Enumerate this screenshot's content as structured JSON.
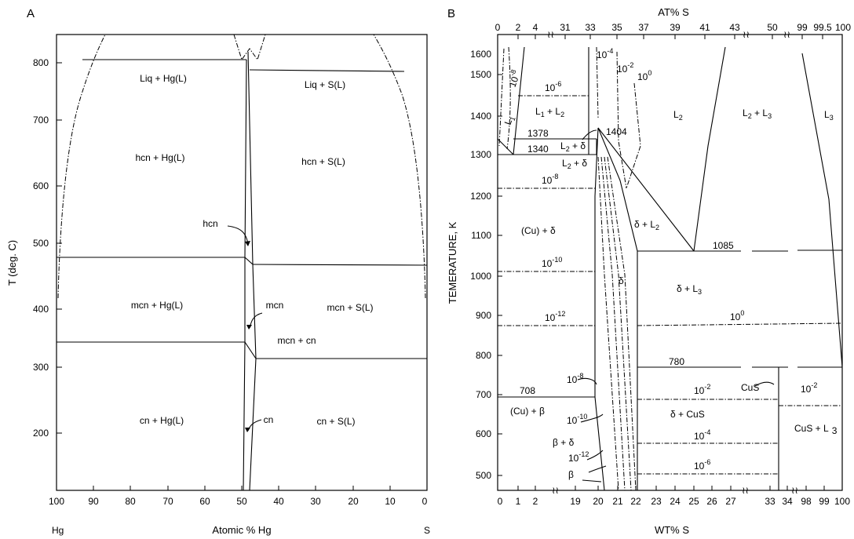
{
  "panel_a": {
    "letter": "A",
    "ylabel": "T (deg. C)",
    "xlabel": "Atomic % Hg",
    "x_end_left": "Hg",
    "x_end_right": "S",
    "x_ticks": [
      "100",
      "90",
      "80",
      "70",
      "60",
      "50",
      "40",
      "30",
      "20",
      "10",
      "0"
    ],
    "y_ticks": [
      "200",
      "300",
      "400",
      "500",
      "600",
      "700",
      "800"
    ],
    "regions": {
      "liq_hg": "Liq + Hg(L)",
      "liq_s": "Liq + S(L)",
      "hcn_hg": "hcn + Hg(L)",
      "hcn_s": "hcn + S(L)",
      "hcn": "hcn",
      "mcn_hg": "mcn + Hg(L)",
      "mcn": "mcn",
      "mcn_s": "mcn + S(L)",
      "mcn_cn": "mcn + cn",
      "cn_hg": "cn + Hg(L)",
      "cn": "cn",
      "cn_s": "cn + S(L)"
    }
  },
  "panel_b": {
    "letter": "B",
    "top_label": "AT% S",
    "ylabel": "TEMERATURE, K",
    "xlabel": "WT% S",
    "x_ticks_top": [
      "0",
      "2",
      "4",
      "31",
      "33",
      "35",
      "37",
      "39",
      "41",
      "43",
      "50",
      "99",
      "99.5",
      "100"
    ],
    "x_ticks_bottom": [
      "0",
      "1",
      "2",
      "19",
      "20",
      "21",
      "22",
      "23",
      "24",
      "25",
      "26",
      "27",
      "33",
      "34",
      "98",
      "99",
      "100"
    ],
    "y_ticks": [
      "500",
      "600",
      "700",
      "800",
      "900",
      "1000",
      "1100",
      "1200",
      "1300",
      "1400",
      "1500",
      "1600"
    ],
    "temps": {
      "t1378": "1378",
      "t1340": "1340",
      "t1404": "1404",
      "t1085": "1085",
      "t780": "780",
      "t708": "708"
    },
    "pressure_base": "10",
    "exponents": {
      "m4": "-4",
      "m2": "-2",
      "zero": "0",
      "m6": "-6",
      "m8": "-8",
      "m10": "-10",
      "m12": "-12"
    },
    "regions": {
      "l1": "L",
      "l1_sub": "1",
      "l1l2": "L",
      "l1l2_sub1": "1",
      "l1l2_plus": "+ L",
      "l1l2_sub2": "2",
      "l2": "L",
      "l2_sub": "2",
      "l2l3": "L",
      "l2l3_sub1": "2",
      "l2l3_plus": "+ L",
      "l2l3_sub2": "3",
      "l3": "L",
      "l3_sub": "3",
      "l2d_a": "+ δ",
      "l2d_b": "+ δ",
      "l_2": "L",
      "sub2": "2",
      "cu_d": "(Cu) +   δ",
      "d_l2": "δ + L",
      "d_l2_sub": "2",
      "d_l3": "δ + L",
      "d_l3_sub": "3",
      "delta": "δ",
      "cu_b": "(Cu) +   β",
      "b_d": "β + δ",
      "beta": "β",
      "d_cus": "δ + CuS",
      "cus": "CuS",
      "cus_l3": "CuS + L",
      "cus_l3_sub": "3"
    }
  }
}
